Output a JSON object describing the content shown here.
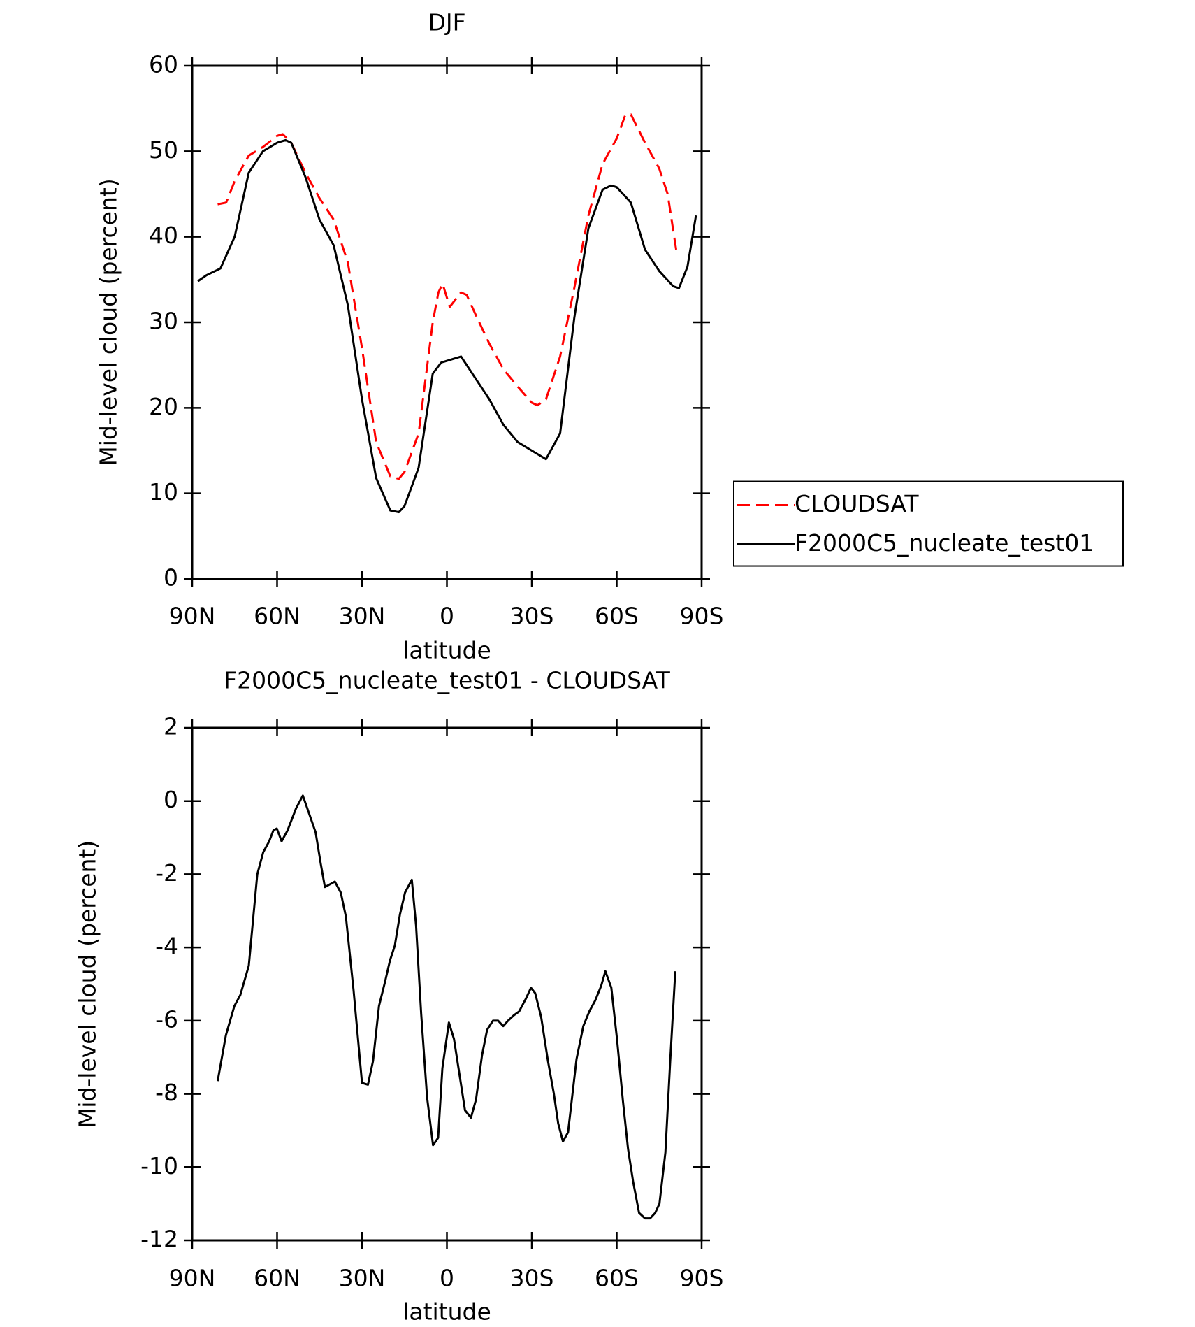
{
  "chart_data": [
    {
      "type": "line",
      "title": "DJF",
      "xlabel": "latitude",
      "ylabel": "Mid-level cloud (percent)",
      "xlim": [
        90,
        -90
      ],
      "xticks": [
        {
          "value": 90,
          "label": "90N"
        },
        {
          "value": 60,
          "label": "60N"
        },
        {
          "value": 30,
          "label": "30N"
        },
        0,
        {
          "value": -30,
          "label": "30S"
        },
        {
          "value": -60,
          "label": "60S"
        },
        {
          "value": -90,
          "label": "90S"
        }
      ],
      "ylim": [
        0,
        60
      ],
      "yticks": [
        0,
        10,
        20,
        30,
        40,
        50,
        60
      ],
      "legend": "right",
      "series": [
        {
          "name": "CLOUDSAT",
          "color": "#ff0000",
          "dashed": true,
          "x": [
            81,
            78,
            75,
            70,
            65,
            60,
            58,
            55,
            50,
            45,
            40,
            35,
            30,
            25,
            20,
            17,
            15,
            10,
            5,
            3,
            1.5,
            -1,
            -5,
            -7,
            -10,
            -15,
            -20,
            -25,
            -30,
            -32,
            -35,
            -40,
            -45,
            -50,
            -55,
            -60,
            -63,
            -65,
            -70,
            -75,
            -78,
            -81
          ],
          "values": [
            43.8,
            44,
            46.5,
            49.5,
            50.5,
            51.8,
            52,
            51,
            47.5,
            44.5,
            42,
            37,
            27,
            16,
            12,
            11.7,
            12.5,
            17,
            30,
            33.5,
            34.5,
            31.8,
            33.5,
            33.2,
            31,
            27.5,
            24.5,
            22.5,
            20.6,
            20.3,
            21,
            26,
            34,
            42.5,
            48.5,
            51.5,
            54.2,
            54.3,
            51,
            48,
            45,
            38.5
          ]
        },
        {
          "name": "F2000C5_nucleate_test01",
          "color": "#000000",
          "dashed": false,
          "x": [
            88,
            85,
            80,
            75,
            70,
            65,
            60,
            57,
            55,
            50,
            45,
            40,
            35,
            30,
            25,
            20,
            17,
            15,
            10,
            5,
            2,
            0,
            -5,
            -10,
            -15,
            -20,
            -25,
            -30,
            -35,
            -40,
            -45,
            -50,
            -55,
            -58,
            -60,
            -65,
            -70,
            -75,
            -80,
            -82,
            -85,
            -88
          ],
          "values": [
            34.8,
            35.5,
            36.3,
            40,
            47.5,
            50,
            51,
            51.3,
            51,
            47,
            42,
            39,
            32,
            21,
            11.8,
            8,
            7.8,
            8.5,
            13,
            24,
            25.3,
            25.5,
            26,
            23.5,
            21,
            18,
            16,
            15,
            14,
            17,
            30.5,
            41,
            45.5,
            46,
            45.8,
            44,
            38.5,
            36,
            34.2,
            34,
            36.5,
            42.5
          ]
        }
      ]
    },
    {
      "type": "line",
      "title": "F2000C5_nucleate_test01 - CLOUDSAT",
      "xlabel": "latitude",
      "ylabel": "Mid-level cloud (percent)",
      "xlim": [
        90,
        -90
      ],
      "xticks": [
        {
          "value": 90,
          "label": "90N"
        },
        {
          "value": 60,
          "label": "60N"
        },
        {
          "value": 30,
          "label": "30N"
        },
        0,
        {
          "value": -30,
          "label": "30S"
        },
        {
          "value": -60,
          "label": "60S"
        },
        {
          "value": -90,
          "label": "90S"
        }
      ],
      "ylim": [
        -12,
        2
      ],
      "yticks": [
        -12,
        -10,
        -8,
        -6,
        -4,
        -2,
        0,
        2
      ],
      "series": [
        {
          "color": "#000000",
          "dashed": false,
          "x": [
            81,
            78.1,
            75.1,
            73,
            70,
            67,
            64.9,
            62.8,
            61.3,
            60.1,
            58.4,
            56.3,
            53.3,
            50.9,
            46.4,
            44.6,
            43.1,
            39.6,
            37.5,
            35.7,
            33,
            30,
            27.9,
            26.1,
            24,
            21.9,
            20.1,
            18.4,
            16.6,
            14.8,
            12.4,
            10.9,
            9.1,
            7,
            4.9,
            3.1,
            1.6,
            -0.7,
            -2.5,
            -6.4,
            -8.5,
            -10.3,
            -12.4,
            -14.2,
            -16.3,
            -18.1,
            -19.9,
            -21.6,
            -23.7,
            -25.5,
            -27.9,
            -29.7,
            -31.2,
            -33.3,
            -35.7,
            -37.8,
            -39.3,
            -41,
            -42.8,
            -45.8,
            -48.2,
            -50.3,
            -52.4,
            -54.5,
            -56,
            -58.1,
            -60.1,
            -62.2,
            -64,
            -65.8,
            -67.9,
            -70,
            -71.8,
            -73.6,
            -75.1,
            -77.2,
            -78.9,
            -80.7
          ],
          "values": [
            -7.65,
            -6.4,
            -5.6,
            -5.3,
            -4.5,
            -2,
            -1.4,
            -1.1,
            -0.8,
            -0.75,
            -1.1,
            -0.8,
            -0.2,
            0.15,
            -0.85,
            -1.7,
            -2.35,
            -2.2,
            -2.5,
            -3.15,
            -5.15,
            -7.7,
            -7.75,
            -7.1,
            -5.6,
            -4.95,
            -4.35,
            -3.95,
            -3.1,
            -2.5,
            -2.15,
            -3.4,
            -5.8,
            -8.1,
            -9.4,
            -9.2,
            -7.3,
            -6.05,
            -6.5,
            -8.45,
            -8.65,
            -8.15,
            -6.95,
            -6.25,
            -6,
            -6,
            -6.15,
            -6,
            -5.85,
            -5.75,
            -5.4,
            -5.1,
            -5.25,
            -5.9,
            -7.1,
            -8,
            -8.8,
            -9.3,
            -9.05,
            -7.05,
            -6.15,
            -5.75,
            -5.45,
            -5.05,
            -4.65,
            -5.1,
            -6.5,
            -8.2,
            -9.5,
            -10.4,
            -11.25,
            -11.4,
            -11.4,
            -11.25,
            -11,
            -9.6,
            -7.1,
            -4.65
          ]
        }
      ]
    }
  ]
}
